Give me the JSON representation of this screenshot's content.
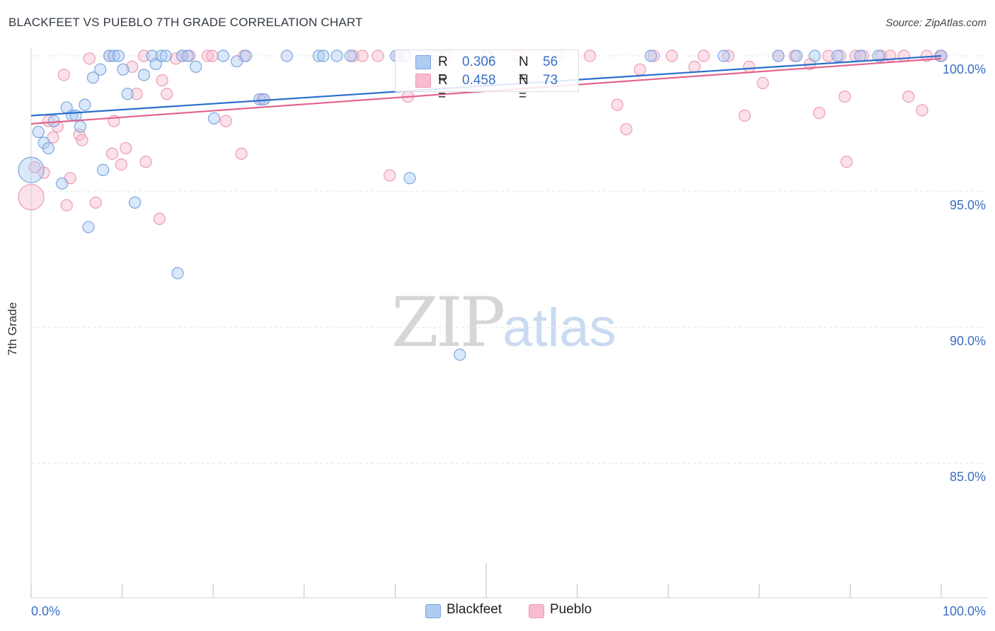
{
  "header": {
    "title": "BLACKFEET VS PUEBLO 7TH GRADE CORRELATION CHART",
    "source": "Source: ZipAtlas.com"
  },
  "legend": {
    "blackfeet": {
      "r_label": "R =",
      "r_value": "0.306",
      "n_label": "N =",
      "n_value": "56"
    },
    "pueblo": {
      "r_label": "R =",
      "r_value": "0.458",
      "n_label": "N =",
      "n_value": "73"
    }
  },
  "bottom_legend": {
    "blackfeet": "Blackfeet",
    "pueblo": "Pueblo"
  },
  "watermark": {
    "zip": "ZIP",
    "atlas": "atlas"
  },
  "colors": {
    "blackfeet_fill": "#aecbf2",
    "blackfeet_stroke": "#7aa6e0",
    "blackfeet_line": "#2a6fce",
    "pueblo_fill": "#f7bccf",
    "pueblo_stroke": "#ee9ab6",
    "pueblo_line": "#e2648e",
    "tick_label": "#3a6fc4",
    "grid": "#e3e3e3"
  },
  "chart_data": {
    "type": "scatter",
    "title": "BLACKFEET VS PUEBLO 7TH GRADE CORRELATION CHART",
    "xlabel": "",
    "ylabel": "7th Grade",
    "xlim": [
      0,
      100
    ],
    "ylim": [
      80.5,
      100.8
    ],
    "x_tick_labels": [
      {
        "value": 0,
        "label": "0.0%"
      },
      {
        "value": 100,
        "label": "100.0%"
      }
    ],
    "y_ticks": [
      {
        "value": 100,
        "label": "100.0%"
      },
      {
        "value": 95,
        "label": "95.0%"
      },
      {
        "value": 90,
        "label": "90.0%"
      },
      {
        "value": 85,
        "label": "85.0%"
      }
    ],
    "grid": true,
    "legend_position": "top-center",
    "series": [
      {
        "name": "Blackfeet",
        "trend": {
          "x": [
            0,
            100
          ],
          "y": [
            97.8,
            100.0
          ]
        },
        "points": [
          {
            "x": 0,
            "y": 95.8,
            "big": true
          },
          {
            "x": 0.8,
            "y": 97.2
          },
          {
            "x": 1.4,
            "y": 96.8
          },
          {
            "x": 1.9,
            "y": 96.6
          },
          {
            "x": 2.5,
            "y": 97.6
          },
          {
            "x": 3.4,
            "y": 95.3
          },
          {
            "x": 3.9,
            "y": 98.1
          },
          {
            "x": 4.5,
            "y": 97.8
          },
          {
            "x": 4.9,
            "y": 97.8
          },
          {
            "x": 5.4,
            "y": 97.4
          },
          {
            "x": 5.9,
            "y": 98.2
          },
          {
            "x": 6.3,
            "y": 93.7
          },
          {
            "x": 6.8,
            "y": 99.2
          },
          {
            "x": 7.6,
            "y": 99.5
          },
          {
            "x": 7.9,
            "y": 95.8
          },
          {
            "x": 8.6,
            "y": 100
          },
          {
            "x": 9.1,
            "y": 100
          },
          {
            "x": 9.6,
            "y": 100
          },
          {
            "x": 10.1,
            "y": 99.5
          },
          {
            "x": 10.6,
            "y": 98.6
          },
          {
            "x": 11.4,
            "y": 94.6
          },
          {
            "x": 12.4,
            "y": 99.3
          },
          {
            "x": 13.3,
            "y": 100
          },
          {
            "x": 13.7,
            "y": 99.7
          },
          {
            "x": 14.3,
            "y": 100
          },
          {
            "x": 14.8,
            "y": 100
          },
          {
            "x": 16.1,
            "y": 92.0
          },
          {
            "x": 16.6,
            "y": 100
          },
          {
            "x": 17.2,
            "y": 100
          },
          {
            "x": 18.1,
            "y": 99.6
          },
          {
            "x": 20.1,
            "y": 97.7
          },
          {
            "x": 21.1,
            "y": 100
          },
          {
            "x": 22.6,
            "y": 99.8
          },
          {
            "x": 23.6,
            "y": 100
          },
          {
            "x": 25.1,
            "y": 98.4
          },
          {
            "x": 25.6,
            "y": 98.4
          },
          {
            "x": 28.1,
            "y": 100
          },
          {
            "x": 31.6,
            "y": 100
          },
          {
            "x": 32.1,
            "y": 100
          },
          {
            "x": 33.6,
            "y": 100
          },
          {
            "x": 35.1,
            "y": 100
          },
          {
            "x": 40.1,
            "y": 100
          },
          {
            "x": 41.1,
            "y": 100
          },
          {
            "x": 41.6,
            "y": 95.5
          },
          {
            "x": 44.6,
            "y": 100
          },
          {
            "x": 47.1,
            "y": 89.0
          },
          {
            "x": 50.1,
            "y": 100
          },
          {
            "x": 68.1,
            "y": 100
          },
          {
            "x": 76.1,
            "y": 100
          },
          {
            "x": 82.1,
            "y": 100
          },
          {
            "x": 84.1,
            "y": 100
          },
          {
            "x": 86.1,
            "y": 100
          },
          {
            "x": 88.6,
            "y": 100
          },
          {
            "x": 91.1,
            "y": 100
          },
          {
            "x": 93.1,
            "y": 100
          },
          {
            "x": 100,
            "y": 100
          }
        ]
      },
      {
        "name": "Pueblo",
        "trend": {
          "x": [
            0,
            100
          ],
          "y": [
            97.5,
            99.9
          ]
        },
        "points": [
          {
            "x": 0,
            "y": 94.8,
            "big": true
          },
          {
            "x": 0.4,
            "y": 95.9
          },
          {
            "x": 1.4,
            "y": 95.7
          },
          {
            "x": 1.9,
            "y": 97.6
          },
          {
            "x": 2.4,
            "y": 97.0
          },
          {
            "x": 2.9,
            "y": 97.4
          },
          {
            "x": 3.6,
            "y": 99.3
          },
          {
            "x": 3.9,
            "y": 94.5
          },
          {
            "x": 4.3,
            "y": 95.5
          },
          {
            "x": 5.3,
            "y": 97.1
          },
          {
            "x": 5.6,
            "y": 96.9
          },
          {
            "x": 6.4,
            "y": 99.9
          },
          {
            "x": 7.1,
            "y": 94.6
          },
          {
            "x": 8.6,
            "y": 100
          },
          {
            "x": 8.9,
            "y": 96.4
          },
          {
            "x": 9.1,
            "y": 97.6
          },
          {
            "x": 9.9,
            "y": 96.0
          },
          {
            "x": 10.4,
            "y": 96.6
          },
          {
            "x": 11.1,
            "y": 99.6
          },
          {
            "x": 11.6,
            "y": 98.6
          },
          {
            "x": 12.4,
            "y": 100
          },
          {
            "x": 12.6,
            "y": 96.1
          },
          {
            "x": 14.1,
            "y": 94.0
          },
          {
            "x": 14.4,
            "y": 99.1
          },
          {
            "x": 14.9,
            "y": 98.6
          },
          {
            "x": 15.9,
            "y": 99.9
          },
          {
            "x": 16.6,
            "y": 100
          },
          {
            "x": 17.4,
            "y": 100
          },
          {
            "x": 19.4,
            "y": 100
          },
          {
            "x": 19.9,
            "y": 100
          },
          {
            "x": 21.4,
            "y": 97.6
          },
          {
            "x": 23.1,
            "y": 96.4
          },
          {
            "x": 23.4,
            "y": 100
          },
          {
            "x": 25.4,
            "y": 98.4
          },
          {
            "x": 35.4,
            "y": 100
          },
          {
            "x": 36.4,
            "y": 100
          },
          {
            "x": 38.1,
            "y": 100
          },
          {
            "x": 39.4,
            "y": 95.6
          },
          {
            "x": 40.4,
            "y": 100
          },
          {
            "x": 41.4,
            "y": 98.5
          },
          {
            "x": 45.6,
            "y": 100
          },
          {
            "x": 53.4,
            "y": 100
          },
          {
            "x": 57.9,
            "y": 100
          },
          {
            "x": 64.4,
            "y": 98.2
          },
          {
            "x": 65.4,
            "y": 97.3
          },
          {
            "x": 66.9,
            "y": 99.5
          },
          {
            "x": 68.4,
            "y": 100
          },
          {
            "x": 70.4,
            "y": 100
          },
          {
            "x": 72.9,
            "y": 99.6
          },
          {
            "x": 73.9,
            "y": 100
          },
          {
            "x": 76.6,
            "y": 100
          },
          {
            "x": 78.4,
            "y": 97.8
          },
          {
            "x": 78.9,
            "y": 99.6
          },
          {
            "x": 80.4,
            "y": 99.0
          },
          {
            "x": 82.1,
            "y": 100
          },
          {
            "x": 83.9,
            "y": 100
          },
          {
            "x": 85.6,
            "y": 99.7
          },
          {
            "x": 86.6,
            "y": 97.9
          },
          {
            "x": 87.6,
            "y": 100
          },
          {
            "x": 88.9,
            "y": 100
          },
          {
            "x": 89.4,
            "y": 98.5
          },
          {
            "x": 89.6,
            "y": 96.1
          },
          {
            "x": 90.6,
            "y": 100
          },
          {
            "x": 91.4,
            "y": 100
          },
          {
            "x": 93.4,
            "y": 100
          },
          {
            "x": 94.4,
            "y": 100
          },
          {
            "x": 95.9,
            "y": 100
          },
          {
            "x": 96.4,
            "y": 98.5
          },
          {
            "x": 97.9,
            "y": 98.0
          },
          {
            "x": 98.4,
            "y": 100
          },
          {
            "x": 99.9,
            "y": 100
          },
          {
            "x": 100,
            "y": 100
          },
          {
            "x": 61.4,
            "y": 100
          }
        ]
      }
    ]
  }
}
